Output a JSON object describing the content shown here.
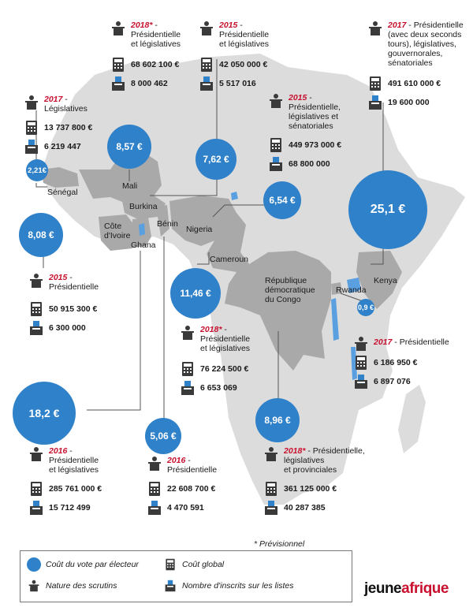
{
  "countries": {
    "senegal": "Sénégal",
    "mali": "Mali",
    "burkina": "Burkina",
    "cote_ivoire": "Côte\nd'Ivoire",
    "ghana": "Ghana",
    "benin": "Bénin",
    "nigeria": "Nigeria",
    "cameroun": "Cameroun",
    "rdc": "République\ndémocratique\ndu Congo",
    "rwanda": "Rwanda",
    "kenya": "Kenya"
  },
  "bubbles": {
    "senegal": "2,21€",
    "mali": "8,57 €",
    "burkina": "7,62 €",
    "nigeria": "6,54 €",
    "kenya": "25,1 €",
    "cote_ivoire": "8,08 €",
    "cameroun": "11,46 €",
    "rwanda": "0,9 €",
    "ghana": "18,2 €",
    "benin": "5,06 €",
    "rdc": "8,96 €"
  },
  "elections": {
    "mali": {
      "year": "2018*",
      "type": " - \nPrésidentielle\net législatives",
      "cost": "68 602 100 €",
      "voters": "8 000 462"
    },
    "burkina": {
      "year": "2015",
      "type": " - \nPrésidentielle\net législatives",
      "cost": "42 050 000 €",
      "voters": "5 517 016"
    },
    "kenya": {
      "year": "2017",
      "type": " - Présidentielle\n(avec deux seconds\ntours), législatives,\ngouvernorales,\nsénatoriales",
      "cost": "491 610 000 €",
      "voters": "19 600 000"
    },
    "senegal": {
      "year": "2017",
      "type": " - \nLégislatives",
      "cost": "13 737 800 €",
      "voters": "6 219 447"
    },
    "nigeria": {
      "year": "2015",
      "type": " - \nPrésidentielle,\nlégislatives et\nsénatoriales",
      "cost": "449 973 000 €",
      "voters": "68 800 000"
    },
    "cote_ivoire": {
      "year": "2015",
      "type": " - \nPrésidentielle",
      "cost": "50 915 300 €",
      "voters": "6 300 000"
    },
    "cameroun": {
      "year": "2018*",
      "type": " - \nPrésidentielle\net législatives",
      "cost": "76 224 500 €",
      "voters": "6 653 069"
    },
    "rwanda": {
      "year": "2017",
      "type": " - Présidentielle",
      "cost": "6 186 950 €",
      "voters": "6 897 076"
    },
    "ghana": {
      "year": "2016",
      "type": " - \nPrésidentielle\net législatives",
      "cost": "285 761 000 €",
      "voters": "15 712 499"
    },
    "benin": {
      "year": "2016",
      "type": " - \nPrésidentielle",
      "cost": "22 608 700 €",
      "voters": "4 470 591"
    },
    "rdc": {
      "year": "2018*",
      "type": " - Présidentielle,\nlégislatives\net provinciales",
      "cost": "361 125 000 €",
      "voters": "40 287 385"
    }
  },
  "footnote": "* Prévisionnel",
  "legend": {
    "cost_per_voter": "Coût du vote par électeur",
    "election_type": "Nature des scrutins",
    "total_cost": "Coût global",
    "registered": "Nombre d'inscrits sur les listes"
  },
  "logo": {
    "part1": "jeune",
    "part2": "afrique"
  },
  "colors": {
    "bubble": "#2f81c9",
    "year": "#c8102e",
    "land": "#dcdcdc",
    "highlight": "#a9a9a9",
    "water": "#5aa0e0"
  },
  "icons": {
    "ballot_box": "ballot-box-icon",
    "calculator": "calculator-icon",
    "podium": "podium-icon"
  }
}
